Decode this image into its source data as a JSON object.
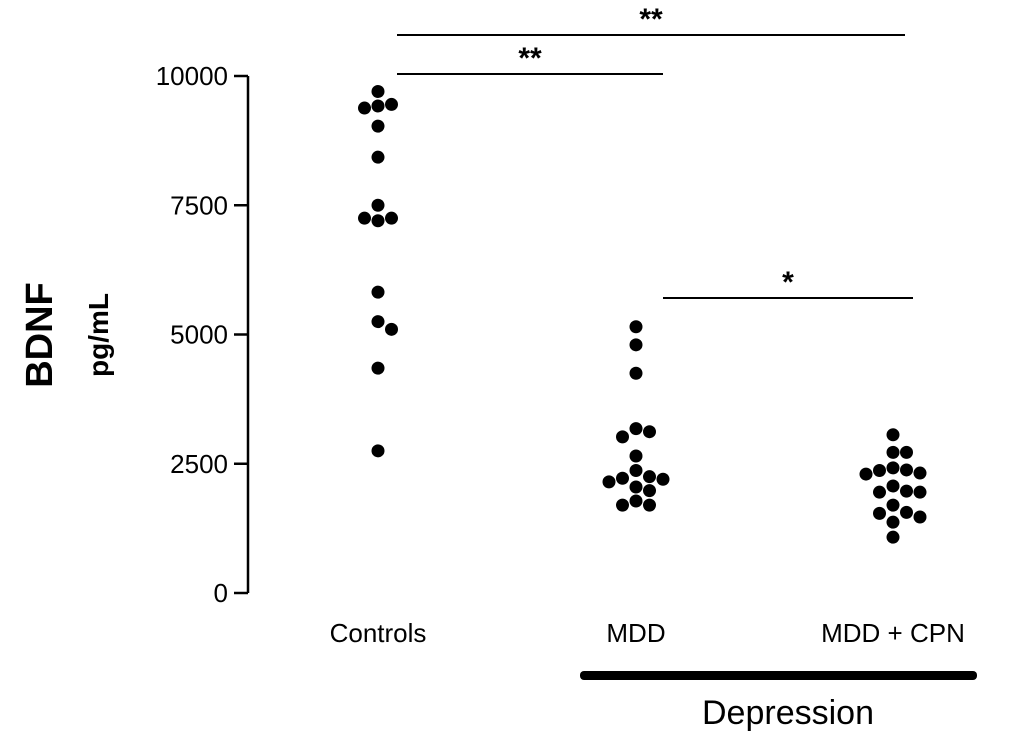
{
  "chart_data": {
    "type": "scatter",
    "ylabel": "BDNF",
    "ylabel_unit": "pg/mL",
    "yticks": [
      "0",
      "2500",
      "5000",
      "7500",
      "10000"
    ],
    "ylim": [
      0,
      10000
    ],
    "categories": [
      "Controls",
      "MDD",
      "MDD + CPN"
    ],
    "group_label": "Depression",
    "grid": false,
    "series": [
      {
        "category": "Controls",
        "values": [
          9700,
          9450,
          9420,
          9380,
          9030,
          8430,
          7500,
          7250,
          7250,
          7200,
          5820,
          5250,
          5100,
          4350,
          2750
        ]
      },
      {
        "category": "MDD",
        "values": [
          5150,
          4800,
          4250,
          3180,
          3120,
          3020,
          2650,
          2370,
          2250,
          2220,
          2200,
          2150,
          2050,
          1980,
          1780,
          1700,
          1700
        ]
      },
      {
        "category": "MDD + CPN",
        "values": [
          3060,
          2720,
          2720,
          2420,
          2380,
          2370,
          2320,
          2300,
          2070,
          1970,
          1950,
          1950,
          1700,
          1560,
          1540,
          1470,
          1370,
          1080
        ]
      }
    ],
    "significance": [
      {
        "from": "Controls",
        "to": "MDD",
        "label": "**"
      },
      {
        "from": "Controls",
        "to": "MDD + CPN",
        "label": "**"
      },
      {
        "from": "MDD",
        "to": "MDD + CPN",
        "label": "*"
      }
    ]
  }
}
